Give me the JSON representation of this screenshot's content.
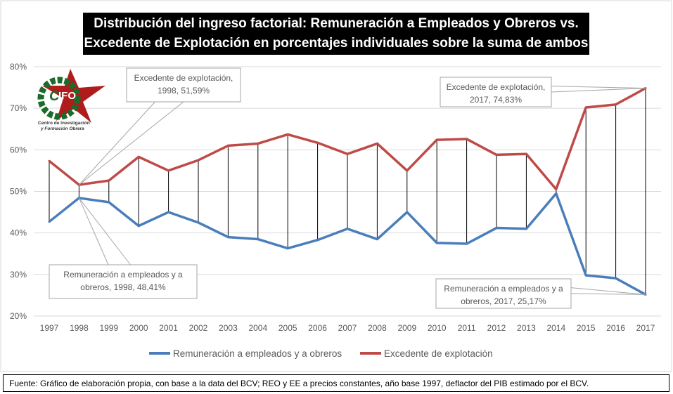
{
  "title_lines": [
    "Distribución del ingreso factorial: Remuneración a Empleados y Obreros vs.",
    "Excedente de Explotación en porcentajes individuales sobre la suma de ambos"
  ],
  "logo": {
    "text": "CIFO",
    "subtitle": "Centro de Investigación y Formación Obrera"
  },
  "footer": "Fuente: Gráfico de elaboración propia, con base a la data del BCV; REO y EE a precios constantes, año base 1997, deflactor del PIB estimado por el BCV.",
  "chart_data": {
    "type": "line",
    "categories": [
      "1997",
      "1998",
      "1999",
      "2000",
      "2001",
      "2002",
      "2003",
      "2004",
      "2005",
      "2006",
      "2007",
      "2008",
      "2009",
      "2010",
      "2011",
      "2012",
      "2013",
      "2014",
      "2015",
      "2016",
      "2017"
    ],
    "ylim": [
      20,
      80
    ],
    "yticks": [
      "20%",
      "30%",
      "40%",
      "50%",
      "60%",
      "70%",
      "80%"
    ],
    "grid": true,
    "legend": "bottom",
    "series": [
      {
        "name": "Remuneración a empleados y a obreros",
        "color": "#4a7ebb",
        "values": [
          42.7,
          48.41,
          47.4,
          41.7,
          45.0,
          42.5,
          39.0,
          38.5,
          36.3,
          38.3,
          41.0,
          38.5,
          45.0,
          37.6,
          37.4,
          41.2,
          41.0,
          49.5,
          29.8,
          29.1,
          25.17
        ]
      },
      {
        "name": "Excedente de explotación",
        "color": "#be4b48",
        "values": [
          57.3,
          51.59,
          52.6,
          58.3,
          55.0,
          57.5,
          61.0,
          61.5,
          63.7,
          61.7,
          59.0,
          61.5,
          55.0,
          62.4,
          62.6,
          58.8,
          59.0,
          50.5,
          70.2,
          70.9,
          74.83
        ]
      }
    ],
    "annotations": [
      {
        "lines": [
          "Excedente de explotación,",
          "1998, 51,59%"
        ],
        "series": 1,
        "index": 1
      },
      {
        "lines": [
          "Remuneración a empleados y a",
          "obreros, 1998, 48,41%"
        ],
        "series": 0,
        "index": 1
      },
      {
        "lines": [
          "Excedente de explotación,",
          "2017, 74,83%"
        ],
        "series": 1,
        "index": 20
      },
      {
        "lines": [
          "Remuneración a empleados y a",
          "obreros, 2017, 25,17%"
        ],
        "series": 0,
        "index": 20
      }
    ]
  }
}
